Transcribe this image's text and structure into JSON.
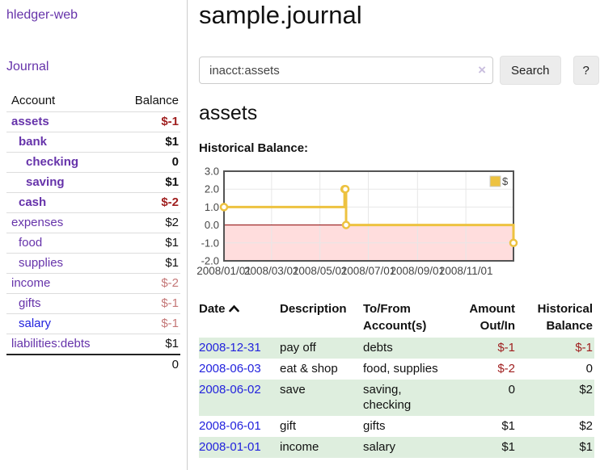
{
  "sidebar": {
    "brand": "hledger-web",
    "journal_link": "Journal",
    "accounts": {
      "headers": {
        "account": "Account",
        "balance": "Balance"
      },
      "rows": [
        {
          "name": "assets",
          "balance": "$-1"
        },
        {
          "name": "bank",
          "balance": "$1"
        },
        {
          "name": "checking",
          "balance": "0"
        },
        {
          "name": "saving",
          "balance": "$1"
        },
        {
          "name": "cash",
          "balance": "$-2"
        },
        {
          "name": "expenses",
          "balance": "$2"
        },
        {
          "name": "food",
          "balance": "$1"
        },
        {
          "name": "supplies",
          "balance": "$1"
        },
        {
          "name": "income",
          "balance": "$-2"
        },
        {
          "name": "gifts",
          "balance": "$-1"
        },
        {
          "name": "salary",
          "balance": "$-1"
        },
        {
          "name": "liabilities:debts",
          "balance": "$1"
        }
      ],
      "total": "0"
    }
  },
  "main": {
    "title": "sample.journal",
    "search": {
      "value": "inacct:assets",
      "clear_icon": "×",
      "search_button": "Search",
      "help_button": "?"
    },
    "account_heading": "assets",
    "chart_label": "Historical Balance:",
    "register": {
      "headers": {
        "date": "Date",
        "description": "Description",
        "accounts": "To/From Account(s)",
        "amount": "Amount Out/In",
        "balance": "Historical Balance"
      },
      "sort": "date ascending",
      "rows": [
        {
          "date": "2008-12-31",
          "description": "pay off",
          "accounts": "debts",
          "amount": "$-1",
          "balance": "$-1"
        },
        {
          "date": "2008-06-03",
          "description": "eat & shop",
          "accounts": "food, supplies",
          "amount": "$-2",
          "balance": "0"
        },
        {
          "date": "2008-06-02",
          "description": "save",
          "accounts": "saving, checking",
          "amount": "0",
          "balance": "$2"
        },
        {
          "date": "2008-06-01",
          "description": "gift",
          "accounts": "gifts",
          "amount": "$1",
          "balance": "$2"
        },
        {
          "date": "2008-01-01",
          "description": "income",
          "accounts": "salary",
          "amount": "$1",
          "balance": "$1"
        }
      ]
    }
  },
  "chart_data": {
    "type": "line",
    "title": "Historical Balance",
    "line_style": "steps",
    "series": [
      {
        "name": "$",
        "color": "#edc240",
        "points": [
          [
            "2008-01-01",
            1
          ],
          [
            "2008-06-01",
            2
          ],
          [
            "2008-06-02",
            2
          ],
          [
            "2008-06-03",
            0
          ],
          [
            "2008-12-31",
            -1
          ]
        ]
      }
    ],
    "x_start": "2008-01-01",
    "x_span_days": 365,
    "x_ticks": [
      "2008/01/01",
      "2008/03/01",
      "2008/05/01",
      "2008/07/01",
      "2008/09/01",
      "2008/11/01"
    ],
    "y_ticks": [
      3.0,
      2.0,
      1.0,
      0.0,
      -1.0,
      -2.0
    ],
    "ylim": [
      -2,
      3
    ],
    "grid": true,
    "legend": {
      "label": "$",
      "position": "top-right"
    },
    "negative_region_color": "#ffdddd",
    "zero_line_color": "#8b0000",
    "border_color": "#545454",
    "gridline_color": "#e7e7e7"
  },
  "colors": {
    "link_purple": "#6633aa",
    "link_blue": "#2222dd",
    "negative_strong": "#a02020",
    "negative_soft": "#c47777",
    "row_stripe_green": "#deeede",
    "chart_line": "#edc240"
  }
}
